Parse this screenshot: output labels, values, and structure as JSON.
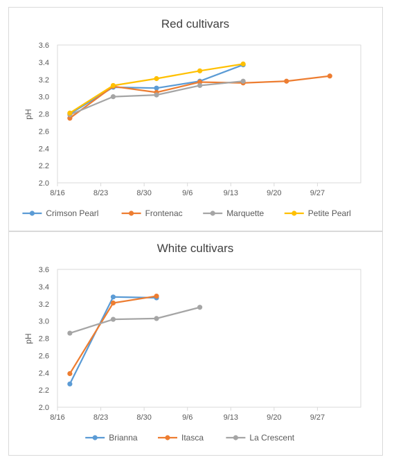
{
  "chart_data": [
    {
      "type": "line",
      "title": "Red cultivars",
      "ylabel": "pH",
      "xlabel": "",
      "ylim": [
        2.0,
        3.6
      ],
      "y_ticks": [
        "2.0",
        "2.2",
        "2.4",
        "2.6",
        "2.8",
        "3.0",
        "3.2",
        "3.4",
        "3.6"
      ],
      "x_ticks": [
        "8/16",
        "8/23",
        "8/30",
        "9/6",
        "9/13",
        "9/20",
        "9/27"
      ],
      "x_axis": "date, day after 8/16",
      "grid": false,
      "legend": "bottom",
      "series": [
        {
          "name": "Crimson Pearl",
          "color": "#5B9BD5",
          "points": [
            [
              "8/18",
              2.8
            ],
            [
              "8/25",
              3.11
            ],
            [
              "9/1",
              3.1
            ],
            [
              "9/8",
              3.18
            ],
            [
              "9/15",
              3.37
            ]
          ]
        },
        {
          "name": "Frontenac",
          "color": "#ED7D31",
          "points": [
            [
              "8/18",
              2.75
            ],
            [
              "8/25",
              3.12
            ],
            [
              "9/1",
              3.05
            ],
            [
              "9/8",
              3.17
            ],
            [
              "9/15",
              3.16
            ],
            [
              "9/22",
              3.18
            ],
            [
              "9/29",
              3.24
            ]
          ]
        },
        {
          "name": "Marquette",
          "color": "#A5A5A5",
          "points": [
            [
              "8/18",
              2.79
            ],
            [
              "8/25",
              3.0
            ],
            [
              "9/1",
              3.02
            ],
            [
              "9/8",
              3.13
            ],
            [
              "9/15",
              3.18
            ]
          ]
        },
        {
          "name": "Petite Pearl",
          "color": "#FFC000",
          "points": [
            [
              "8/18",
              2.81
            ],
            [
              "8/25",
              3.13
            ],
            [
              "9/1",
              3.21
            ],
            [
              "9/8",
              3.3
            ],
            [
              "9/15",
              3.38
            ]
          ]
        }
      ]
    },
    {
      "type": "line",
      "title": "White cultivars",
      "ylabel": "pH",
      "xlabel": "",
      "ylim": [
        2.0,
        3.6
      ],
      "y_ticks": [
        "2.0",
        "2.2",
        "2.4",
        "2.6",
        "2.8",
        "3.0",
        "3.2",
        "3.4",
        "3.6"
      ],
      "x_ticks": [
        "8/16",
        "8/23",
        "8/30",
        "9/6",
        "9/13",
        "9/20",
        "9/27"
      ],
      "grid": false,
      "legend": "bottom",
      "series": [
        {
          "name": "Brianna",
          "color": "#5B9BD5",
          "points": [
            [
              "8/18",
              2.27
            ],
            [
              "8/25",
              3.28
            ],
            [
              "9/1",
              3.27
            ]
          ]
        },
        {
          "name": "Itasca",
          "color": "#ED7D31",
          "points": [
            [
              "8/18",
              2.39
            ],
            [
              "8/25",
              3.21
            ],
            [
              "9/1",
              3.29
            ]
          ]
        },
        {
          "name": "La Crescent",
          "color": "#A5A5A5",
          "points": [
            [
              "8/18",
              2.86
            ],
            [
              "8/25",
              3.02
            ],
            [
              "9/1",
              3.03
            ],
            [
              "9/8",
              3.16
            ]
          ]
        }
      ]
    }
  ]
}
